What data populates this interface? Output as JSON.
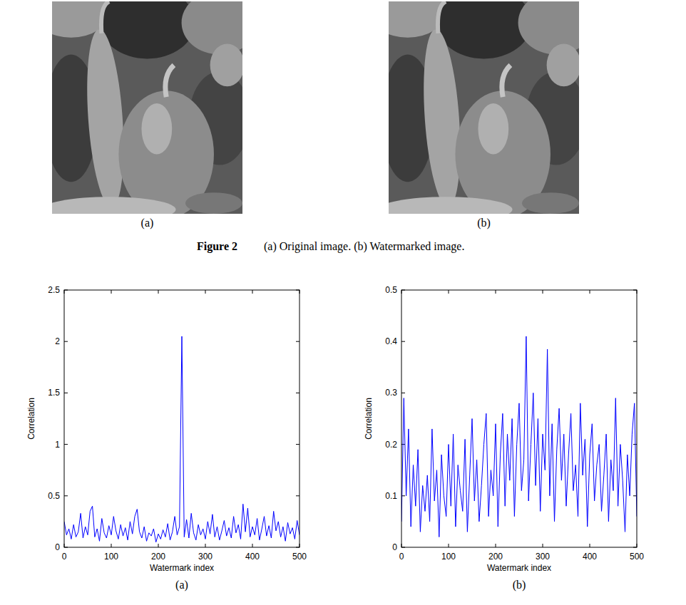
{
  "figure": {
    "image_labels": [
      "(a)",
      "(b)"
    ],
    "caption": {
      "number": "Figure 2",
      "text": "(a) Original image. (b) Watermarked image."
    },
    "chart_labels": [
      "(a)",
      "(b)"
    ]
  },
  "chart_data": [
    {
      "type": "line",
      "x_label": "Watermark index",
      "y_label": "Correlation",
      "color": "#0000ff",
      "xlim": [
        0,
        500
      ],
      "xticks": [
        0,
        100,
        200,
        300,
        400,
        500
      ],
      "ylim": [
        0,
        2.5
      ],
      "yticks": [
        0,
        0.5,
        1,
        1.5,
        2,
        2.5
      ],
      "grid": false,
      "x": [
        0,
        5,
        10,
        15,
        20,
        25,
        30,
        35,
        40,
        45,
        50,
        55,
        60,
        65,
        70,
        75,
        80,
        85,
        90,
        95,
        100,
        105,
        110,
        115,
        120,
        125,
        130,
        135,
        140,
        145,
        150,
        155,
        160,
        165,
        170,
        175,
        180,
        185,
        190,
        195,
        200,
        205,
        210,
        215,
        220,
        225,
        230,
        235,
        240,
        245,
        250,
        255,
        260,
        265,
        270,
        275,
        280,
        285,
        290,
        295,
        300,
        305,
        310,
        315,
        320,
        325,
        330,
        335,
        340,
        345,
        350,
        355,
        360,
        365,
        370,
        375,
        380,
        385,
        390,
        395,
        400,
        405,
        410,
        415,
        420,
        425,
        430,
        435,
        440,
        445,
        450,
        455,
        460,
        465,
        470,
        475,
        480,
        485,
        490,
        495,
        500
      ],
      "values": [
        0.25,
        0.12,
        0.18,
        0.08,
        0.22,
        0.1,
        0.15,
        0.33,
        0.09,
        0.2,
        0.12,
        0.35,
        0.4,
        0.1,
        0.18,
        0.06,
        0.28,
        0.14,
        0.09,
        0.21,
        0.12,
        0.3,
        0.16,
        0.08,
        0.22,
        0.11,
        0.19,
        0.07,
        0.25,
        0.13,
        0.3,
        0.37,
        0.15,
        0.09,
        0.2,
        0.06,
        0.14,
        0.11,
        0.18,
        0.05,
        0.13,
        0.08,
        0.17,
        0.1,
        0.23,
        0.07,
        0.15,
        0.3,
        0.12,
        0.2,
        2.05,
        0.1,
        0.27,
        0.09,
        0.33,
        0.14,
        0.07,
        0.22,
        0.12,
        0.18,
        0.08,
        0.25,
        0.13,
        0.32,
        0.1,
        0.2,
        0.07,
        0.16,
        0.26,
        0.11,
        0.19,
        0.09,
        0.3,
        0.14,
        0.22,
        0.08,
        0.42,
        0.15,
        0.38,
        0.1,
        0.2,
        0.12,
        0.28,
        0.07,
        0.18,
        0.3,
        0.11,
        0.21,
        0.09,
        0.35,
        0.16,
        0.25,
        0.1,
        0.2,
        0.06,
        0.24,
        0.13,
        0.19,
        0.08,
        0.26,
        0.12
      ]
    },
    {
      "type": "line",
      "x_label": "Watermark index",
      "y_label": "Correlation",
      "color": "#0000ff",
      "xlim": [
        0,
        500
      ],
      "xticks": [
        0,
        100,
        200,
        300,
        400,
        500
      ],
      "ylim": [
        0,
        0.5
      ],
      "yticks": [
        0,
        0.1,
        0.2,
        0.3,
        0.4,
        0.5
      ],
      "grid": false,
      "x": [
        0,
        5,
        10,
        15,
        20,
        25,
        30,
        35,
        40,
        45,
        50,
        55,
        60,
        65,
        70,
        75,
        80,
        85,
        90,
        95,
        100,
        105,
        110,
        115,
        120,
        125,
        130,
        135,
        140,
        145,
        150,
        155,
        160,
        165,
        170,
        175,
        180,
        185,
        190,
        195,
        200,
        205,
        210,
        215,
        220,
        225,
        230,
        235,
        240,
        245,
        250,
        255,
        260,
        265,
        270,
        275,
        280,
        285,
        290,
        295,
        300,
        305,
        310,
        315,
        320,
        325,
        330,
        335,
        340,
        345,
        350,
        355,
        360,
        365,
        370,
        375,
        380,
        385,
        390,
        395,
        400,
        405,
        410,
        415,
        420,
        425,
        430,
        435,
        440,
        445,
        450,
        455,
        460,
        465,
        470,
        475,
        480,
        485,
        490,
        495,
        500
      ],
      "values": [
        0.05,
        0.29,
        0.1,
        0.23,
        0.04,
        0.16,
        0.08,
        0.19,
        0.03,
        0.12,
        0.07,
        0.14,
        0.05,
        0.23,
        0.09,
        0.15,
        0.02,
        0.18,
        0.1,
        0.06,
        0.2,
        0.08,
        0.22,
        0.04,
        0.16,
        0.11,
        0.07,
        0.21,
        0.03,
        0.14,
        0.25,
        0.09,
        0.17,
        0.05,
        0.12,
        0.2,
        0.26,
        0.06,
        0.15,
        0.1,
        0.24,
        0.04,
        0.18,
        0.26,
        0.08,
        0.22,
        0.13,
        0.25,
        0.06,
        0.2,
        0.28,
        0.11,
        0.17,
        0.41,
        0.09,
        0.2,
        0.3,
        0.12,
        0.25,
        0.07,
        0.22,
        0.15,
        0.385,
        0.1,
        0.24,
        0.05,
        0.19,
        0.27,
        0.13,
        0.22,
        0.08,
        0.18,
        0.26,
        0.11,
        0.16,
        0.06,
        0.28,
        0.14,
        0.21,
        0.04,
        0.18,
        0.24,
        0.09,
        0.16,
        0.2,
        0.07,
        0.14,
        0.22,
        0.05,
        0.17,
        0.11,
        0.29,
        0.08,
        0.2,
        0.13,
        0.03,
        0.18,
        0.1,
        0.22,
        0.28,
        0.06
      ]
    }
  ]
}
